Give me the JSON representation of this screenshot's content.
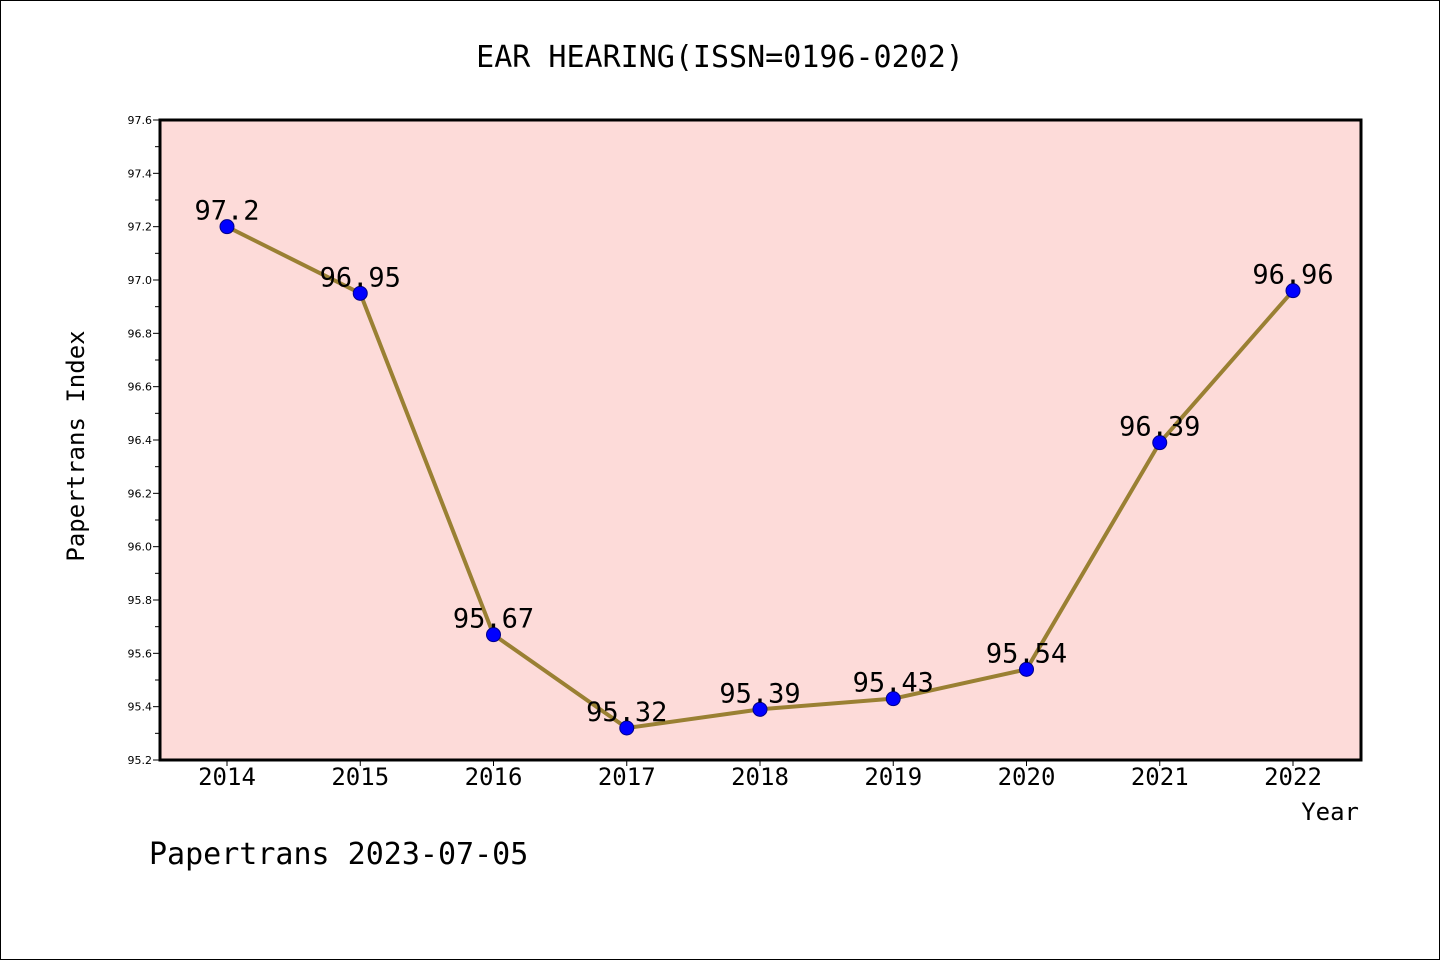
{
  "chart_data": {
    "type": "line",
    "title": "EAR HEARING(ISSN=0196-0202)",
    "xlabel": "Year",
    "ylabel": "Papertrans Index",
    "categories": [
      "2014",
      "2015",
      "2016",
      "2017",
      "2018",
      "2019",
      "2020",
      "2021",
      "2022"
    ],
    "series": [
      {
        "values": [
          97.2,
          96.95,
          95.67,
          95.32,
          95.39,
          95.43,
          95.54,
          96.39,
          96.96
        ],
        "data_labels": [
          "97.2",
          "96.95",
          "95.67",
          "95.32",
          "95.39",
          "95.43",
          "95.54",
          "96.39",
          "96.96"
        ]
      }
    ],
    "ylim": [
      95.2,
      97.6
    ],
    "yticks": [
      95.2,
      95.4,
      95.6,
      95.8,
      96.0,
      96.2,
      96.4,
      96.6,
      96.8,
      97.0,
      97.2,
      97.4,
      97.6
    ],
    "ytick_labels": [
      "95.2",
      "95.4",
      "95.6",
      "95.8",
      "96.0",
      "96.2",
      "96.4",
      "96.6",
      "96.8",
      "97.0",
      "97.2",
      "97.4",
      "97.6"
    ],
    "grid": false,
    "footer": "Papertrans 2023-07-05",
    "colors": {
      "plot_background": "#fddbd9",
      "line": "#9a8033",
      "marker": "#0000ff"
    }
  }
}
